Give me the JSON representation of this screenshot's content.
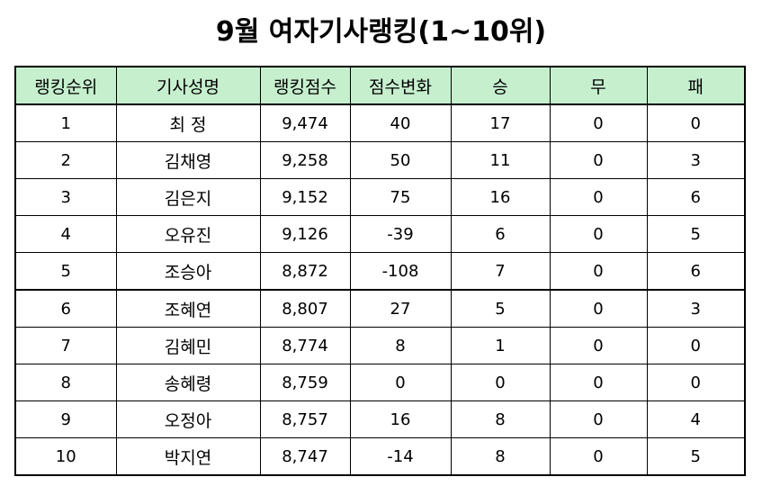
{
  "title": "9월 여자기사랭킹(1~10위)",
  "colors": {
    "header_bg": "#c6efce",
    "border": "#000000"
  },
  "table": {
    "headers": [
      "랭킹순위",
      "기사성명",
      "랭킹점수",
      "점수변화",
      "승",
      "무",
      "패"
    ],
    "rows": [
      [
        "1",
        "최 정",
        "9,474",
        "40",
        "17",
        "0",
        "0"
      ],
      [
        "2",
        "김채영",
        "9,258",
        "50",
        "11",
        "0",
        "3"
      ],
      [
        "3",
        "김은지",
        "9,152",
        "75",
        "16",
        "0",
        "6"
      ],
      [
        "4",
        "오유진",
        "9,126",
        "-39",
        "6",
        "0",
        "5"
      ],
      [
        "5",
        "조승아",
        "8,872",
        "-108",
        "7",
        "0",
        "6"
      ],
      [
        "6",
        "조혜연",
        "8,807",
        "27",
        "5",
        "0",
        "3"
      ],
      [
        "7",
        "김혜민",
        "8,774",
        "8",
        "1",
        "0",
        "0"
      ],
      [
        "8",
        "송혜령",
        "8,759",
        "0",
        "0",
        "0",
        "0"
      ],
      [
        "9",
        "오정아",
        "8,757",
        "16",
        "8",
        "0",
        "4"
      ],
      [
        "10",
        "박지연",
        "8,747",
        "-14",
        "8",
        "0",
        "5"
      ]
    ]
  }
}
